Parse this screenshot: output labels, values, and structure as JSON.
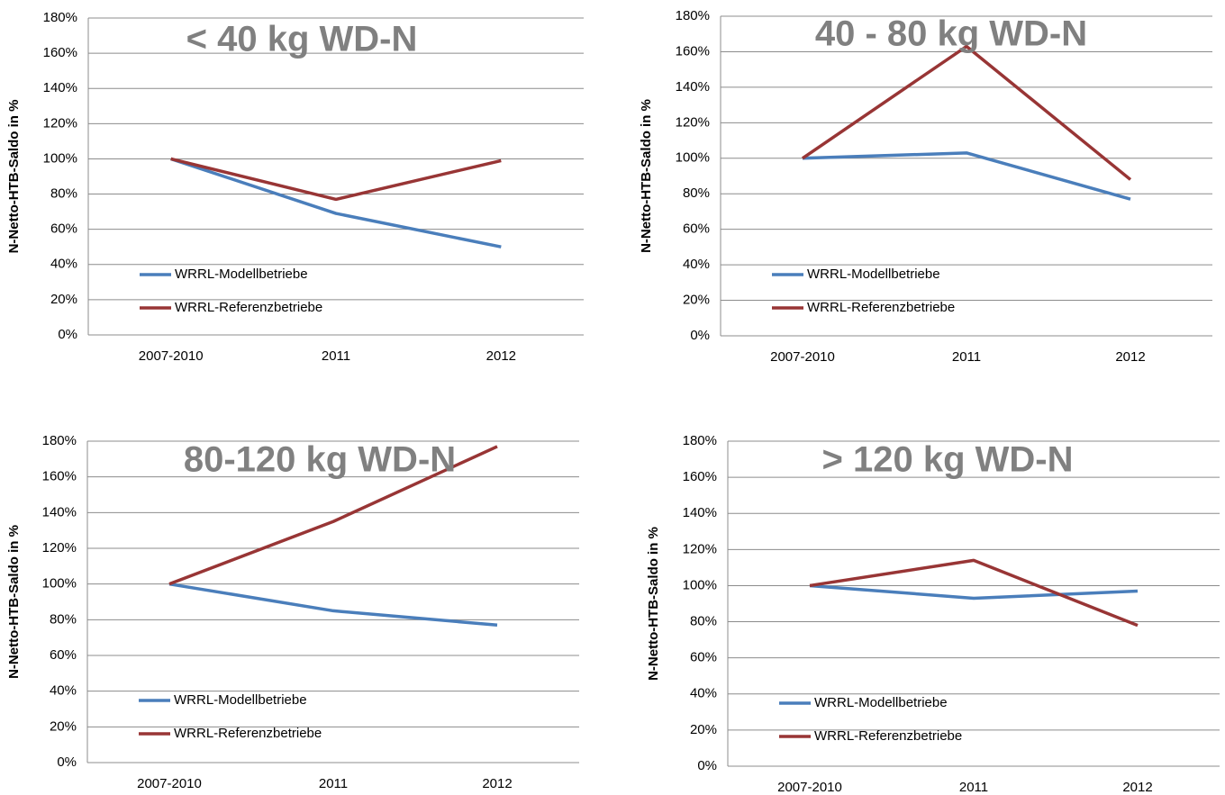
{
  "chart_data": [
    {
      "type": "line",
      "title": "< 40 kg WD-N",
      "y_label": "N-Netto-HTB-Saldo in %",
      "categories": [
        "2007-2010",
        "2011",
        "2012"
      ],
      "series": [
        {
          "name": "WRRL-Modellbetriebe",
          "color": "#4a7ebb",
          "values": [
            100,
            69,
            50
          ]
        },
        {
          "name": "WRRL-Referenzbetriebe",
          "color": "#983535",
          "values": [
            100,
            77,
            99
          ]
        }
      ],
      "ylim": [
        0,
        180
      ],
      "yticks": [
        {
          "value": 0,
          "label": "0%"
        },
        {
          "value": 20,
          "label": "20%"
        },
        {
          "value": 40,
          "label": "40%"
        },
        {
          "value": 60,
          "label": "60%"
        },
        {
          "value": 80,
          "label": "80%"
        },
        {
          "value": 100,
          "label": "100%"
        },
        {
          "value": 120,
          "label": "120%"
        },
        {
          "value": 140,
          "label": "140%"
        },
        {
          "value": 160,
          "label": "160%"
        },
        {
          "value": 180,
          "label": "180%"
        }
      ],
      "grid": true
    },
    {
      "type": "line",
      "title": "40 - 80 kg WD-N",
      "y_label": "N-Netto-HTB-Saldo in %",
      "categories": [
        "2007-2010",
        "2011",
        "2012"
      ],
      "series": [
        {
          "name": "WRRL-Modellbetriebe",
          "color": "#4a7ebb",
          "values": [
            100,
            103,
            77
          ]
        },
        {
          "name": "WRRL-Referenzbetriebe",
          "color": "#983535",
          "values": [
            100,
            163,
            88
          ]
        }
      ],
      "ylim": [
        0,
        180
      ],
      "yticks": [
        {
          "value": 0,
          "label": "0%"
        },
        {
          "value": 20,
          "label": "20%"
        },
        {
          "value": 40,
          "label": "40%"
        },
        {
          "value": 60,
          "label": "60%"
        },
        {
          "value": 80,
          "label": "80%"
        },
        {
          "value": 100,
          "label": "100%"
        },
        {
          "value": 120,
          "label": "120%"
        },
        {
          "value": 140,
          "label": "140%"
        },
        {
          "value": 160,
          "label": "160%"
        },
        {
          "value": 180,
          "label": "180%"
        }
      ],
      "grid": true
    },
    {
      "type": "line",
      "title": "80-120 kg WD-N",
      "y_label": "N-Netto-HTB-Saldo in %",
      "categories": [
        "2007-2010",
        "2011",
        "2012"
      ],
      "series": [
        {
          "name": "WRRL-Modellbetriebe",
          "color": "#4a7ebb",
          "values": [
            100,
            85,
            77
          ]
        },
        {
          "name": "WRRL-Referenzbetriebe",
          "color": "#983535",
          "values": [
            100,
            135,
            177
          ]
        }
      ],
      "ylim": [
        0,
        180
      ],
      "yticks": [
        {
          "value": 0,
          "label": "0%"
        },
        {
          "value": 20,
          "label": "20%"
        },
        {
          "value": 40,
          "label": "40%"
        },
        {
          "value": 60,
          "label": "60%"
        },
        {
          "value": 80,
          "label": "80%"
        },
        {
          "value": 100,
          "label": "100%"
        },
        {
          "value": 120,
          "label": "120%"
        },
        {
          "value": 140,
          "label": "140%"
        },
        {
          "value": 160,
          "label": "160%"
        },
        {
          "value": 180,
          "label": "180%"
        }
      ],
      "grid": true
    },
    {
      "type": "line",
      "title": "> 120 kg WD-N",
      "y_label": "N-Netto-HTB-Saldo in %",
      "categories": [
        "2007-2010",
        "2011",
        "2012"
      ],
      "series": [
        {
          "name": "WRRL-Modellbetriebe",
          "color": "#4a7ebb",
          "values": [
            100,
            93,
            97
          ]
        },
        {
          "name": "WRRL-Referenzbetriebe",
          "color": "#983535",
          "values": [
            100,
            114,
            78
          ]
        }
      ],
      "ylim": [
        0,
        180
      ],
      "yticks": [
        {
          "value": 0,
          "label": "0%"
        },
        {
          "value": 20,
          "label": "20%"
        },
        {
          "value": 40,
          "label": "40%"
        },
        {
          "value": 60,
          "label": "60%"
        },
        {
          "value": 80,
          "label": "80%"
        },
        {
          "value": 100,
          "label": "100%"
        },
        {
          "value": 120,
          "label": "120%"
        },
        {
          "value": 140,
          "label": "140%"
        },
        {
          "value": 160,
          "label": "160%"
        },
        {
          "value": 180,
          "label": "180%"
        }
      ],
      "grid": true
    }
  ]
}
